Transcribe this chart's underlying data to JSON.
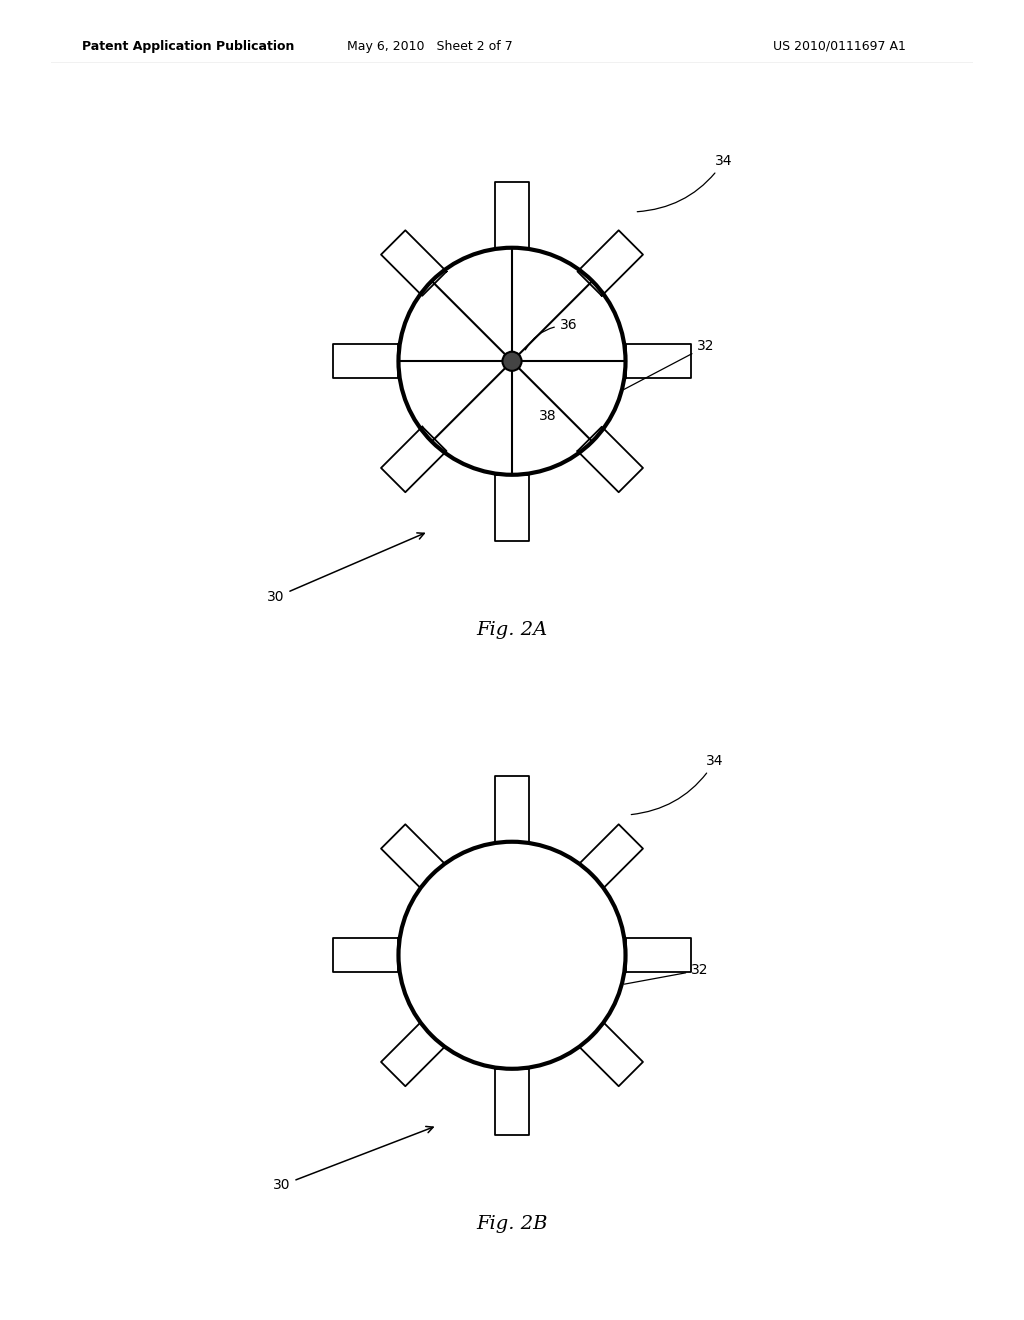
{
  "bg_color": "#ffffff",
  "line_color": "#000000",
  "fig_width": 10.24,
  "fig_height": 13.2,
  "header_text": "Patent Application Publication",
  "header_date": "May 6, 2010   Sheet 2 of 7",
  "header_patent": "US 2010/0111697 A1",
  "fig2a_label": "Fig. 2A",
  "fig2b_label": "Fig. 2B",
  "circle_lw": 3.0,
  "spoke_lw": 1.5,
  "blade_lw": 1.3
}
